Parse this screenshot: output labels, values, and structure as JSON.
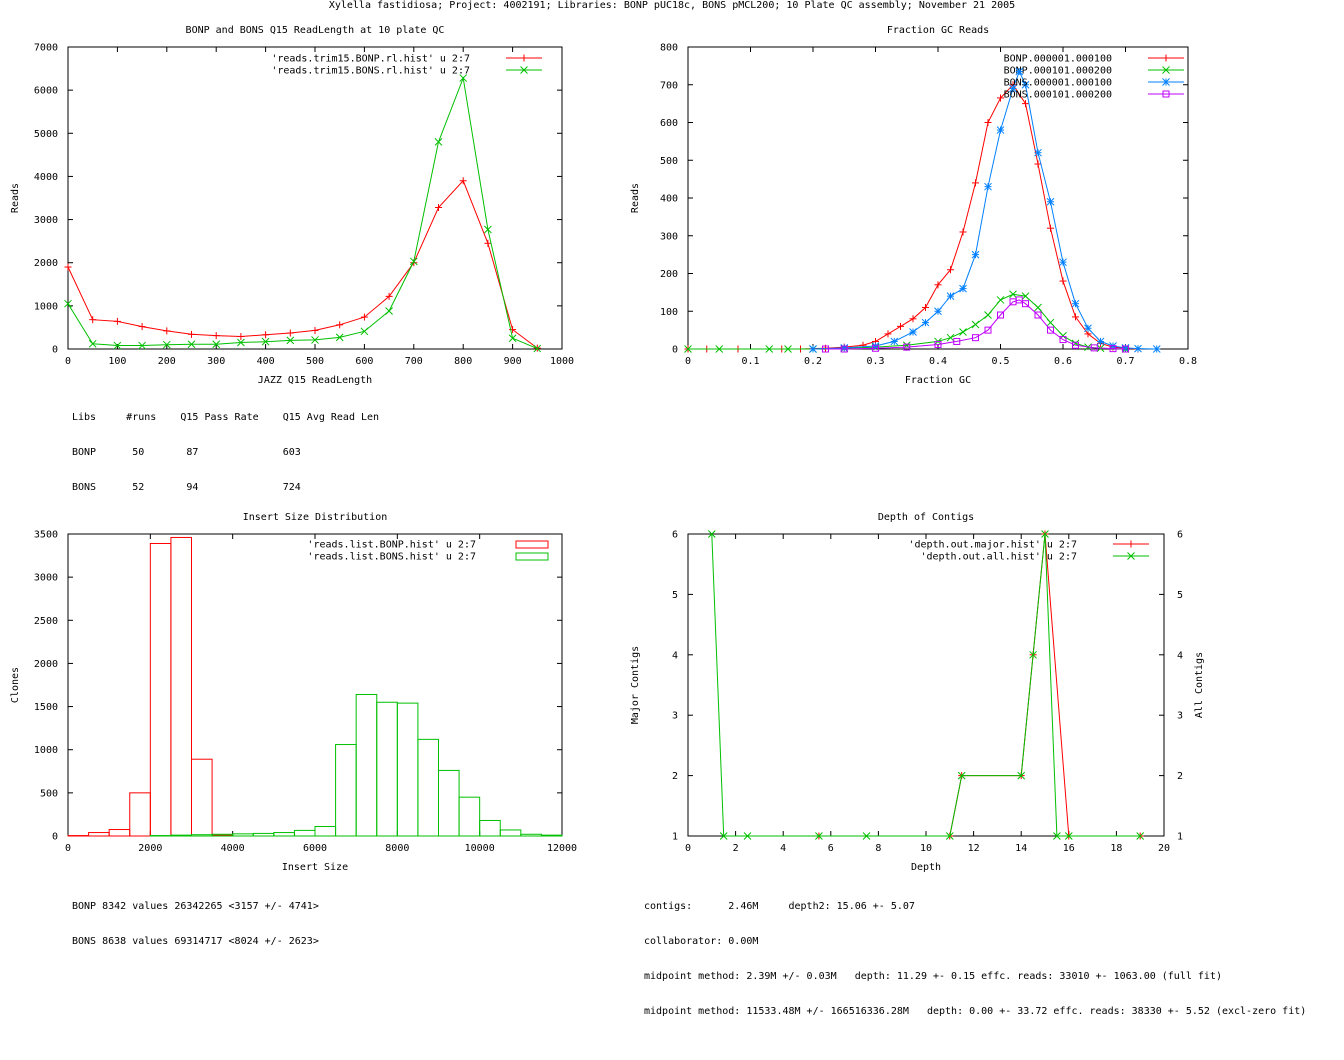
{
  "page_title": "Xylella fastidiosa; Project: 4002191; Libraries: BONP pUC18c, BONS pMCL200; 10 Plate QC assembly; November 21 2005",
  "colors": {
    "red": "#ff0000",
    "green": "#00c000",
    "blue": "#0080ff",
    "magenta": "#c000ff"
  },
  "chart_data": [
    {
      "type": "line",
      "title": "BONP and BONS Q15 ReadLength at 10 plate QC",
      "xlabel": "JAZZ Q15 ReadLength",
      "ylabel": "Reads",
      "xlim": [
        0,
        1000
      ],
      "ylim": [
        0,
        7000
      ],
      "xticks": [
        0,
        100,
        200,
        300,
        400,
        500,
        600,
        700,
        800,
        900,
        1000
      ],
      "yticks": [
        0,
        1000,
        2000,
        3000,
        4000,
        5000,
        6000,
        7000
      ],
      "series": [
        {
          "name": "'reads.trim15.BONP.rl.hist' u 2:7",
          "color": "#ff0000",
          "marker": "plus",
          "x": [
            0,
            50,
            100,
            150,
            200,
            250,
            300,
            350,
            400,
            450,
            500,
            550,
            600,
            650,
            700,
            750,
            800,
            850,
            900,
            950
          ],
          "y": [
            1900,
            680,
            640,
            520,
            420,
            340,
            310,
            290,
            330,
            370,
            430,
            560,
            740,
            1220,
            2000,
            3280,
            3900,
            2450,
            450,
            20
          ]
        },
        {
          "name": "'reads.trim15.BONS.rl.hist' u 2:7",
          "color": "#00c000",
          "marker": "x",
          "x": [
            0,
            50,
            100,
            150,
            200,
            250,
            300,
            350,
            400,
            450,
            500,
            550,
            600,
            650,
            700,
            750,
            800,
            850,
            900,
            950
          ],
          "y": [
            1050,
            120,
            80,
            80,
            100,
            110,
            110,
            150,
            170,
            200,
            210,
            270,
            410,
            880,
            2030,
            4800,
            6280,
            2770,
            250,
            10
          ]
        }
      ],
      "stats_text": [
        "Libs     #runs    Q15 Pass Rate    Q15 Avg Read Len",
        "BONP      50       87              603",
        "BONS      52       94              724"
      ]
    },
    {
      "type": "line",
      "title": "Fraction GC Reads",
      "xlabel": "Fraction GC",
      "ylabel": "Reads",
      "xlim": [
        0,
        0.8
      ],
      "ylim": [
        0,
        800
      ],
      "xticks": [
        0,
        0.1,
        0.2,
        0.3,
        0.4,
        0.5,
        0.6,
        0.7,
        0.8
      ],
      "yticks": [
        0,
        100,
        200,
        300,
        400,
        500,
        600,
        700,
        800
      ],
      "series": [
        {
          "name": "BONP.000001.000100",
          "color": "#ff0000",
          "marker": "plus",
          "x": [
            0,
            0.03,
            0.08,
            0.15,
            0.18,
            0.22,
            0.25,
            0.28,
            0.3,
            0.32,
            0.34,
            0.36,
            0.38,
            0.4,
            0.42,
            0.44,
            0.46,
            0.48,
            0.5,
            0.52,
            0.54,
            0.56,
            0.58,
            0.6,
            0.62,
            0.64,
            0.66,
            0.68,
            0.7,
            0.72
          ],
          "y": [
            0,
            0,
            0,
            0,
            0,
            2,
            5,
            10,
            20,
            40,
            60,
            80,
            110,
            170,
            210,
            310,
            440,
            600,
            665,
            700,
            650,
            490,
            320,
            180,
            85,
            40,
            15,
            5,
            2,
            0
          ]
        },
        {
          "name": "BONP.000101.000200",
          "color": "#00c000",
          "marker": "x",
          "x": [
            0,
            0.05,
            0.13,
            0.16,
            0.2,
            0.25,
            0.3,
            0.35,
            0.4,
            0.42,
            0.44,
            0.46,
            0.48,
            0.5,
            0.52,
            0.54,
            0.56,
            0.58,
            0.6,
            0.62,
            0.64,
            0.66,
            0.7
          ],
          "y": [
            0,
            0,
            0,
            0,
            0,
            2,
            5,
            10,
            20,
            30,
            45,
            65,
            90,
            130,
            145,
            140,
            110,
            70,
            35,
            15,
            5,
            2,
            0
          ]
        },
        {
          "name": "BONS.000001.000100",
          "color": "#0080ff",
          "marker": "star",
          "x": [
            0.2,
            0.25,
            0.3,
            0.33,
            0.36,
            0.38,
            0.4,
            0.42,
            0.44,
            0.46,
            0.48,
            0.5,
            0.52,
            0.53,
            0.54,
            0.56,
            0.58,
            0.6,
            0.62,
            0.64,
            0.66,
            0.68,
            0.7,
            0.72,
            0.75
          ],
          "y": [
            0,
            3,
            8,
            20,
            45,
            70,
            100,
            140,
            160,
            250,
            430,
            580,
            690,
            735,
            700,
            520,
            390,
            230,
            120,
            55,
            20,
            8,
            3,
            1,
            0
          ]
        },
        {
          "name": "BONS.000101.000200",
          "color": "#c000ff",
          "marker": "square",
          "x": [
            0.22,
            0.25,
            0.3,
            0.35,
            0.4,
            0.43,
            0.46,
            0.48,
            0.5,
            0.52,
            0.53,
            0.54,
            0.56,
            0.58,
            0.6,
            0.62,
            0.65,
            0.68,
            0.7
          ],
          "y": [
            0,
            0,
            2,
            5,
            12,
            20,
            30,
            50,
            90,
            125,
            130,
            120,
            90,
            50,
            25,
            10,
            3,
            1,
            0
          ]
        }
      ]
    },
    {
      "type": "bar",
      "title": "Insert Size Distribution",
      "xlabel": "Insert Size",
      "ylabel": "Clones",
      "xlim": [
        0,
        12000
      ],
      "ylim": [
        0,
        3500
      ],
      "xticks": [
        0,
        2000,
        4000,
        6000,
        8000,
        10000,
        12000
      ],
      "yticks": [
        0,
        500,
        1000,
        1500,
        2000,
        2500,
        3000,
        3500
      ],
      "bin_width": 500,
      "series": [
        {
          "name": "'reads.list.BONP.hist' u 2:7",
          "color": "#ff0000",
          "bin_starts": [
            0,
            500,
            1000,
            1500,
            2000,
            2500,
            3000,
            3500
          ],
          "values": [
            5,
            40,
            75,
            500,
            3390,
            3460,
            890,
            10
          ]
        },
        {
          "name": "'reads.list.BONS.hist' u 2:7",
          "color": "#00c000",
          "bin_starts": [
            2000,
            2500,
            3000,
            3500,
            4000,
            4500,
            5000,
            5500,
            6000,
            6500,
            7000,
            7500,
            8000,
            8500,
            9000,
            9500,
            10000,
            10500,
            11000,
            11500
          ],
          "values": [
            5,
            10,
            15,
            20,
            25,
            30,
            40,
            65,
            110,
            1060,
            1640,
            1550,
            1540,
            1120,
            760,
            450,
            180,
            70,
            20,
            10
          ]
        }
      ],
      "stats_text": [
        "BONP 8342 values 26342265 <3157 +/- 4741>",
        "BONS 8638 values 69314717 <8024 +/- 2623>"
      ]
    },
    {
      "type": "line",
      "title": "Depth of Contigs",
      "xlabel": "Depth",
      "ylabel": "Major Contigs",
      "y2label": "All Contigs",
      "xlim": [
        0,
        20
      ],
      "ylim": [
        1,
        6
      ],
      "xticks": [
        0,
        2,
        4,
        6,
        8,
        10,
        12,
        14,
        16,
        18,
        20
      ],
      "yticks": [
        1,
        2,
        3,
        4,
        5,
        6
      ],
      "series": [
        {
          "name": "'depth.out.major.hist' u 2:7",
          "color": "#ff0000",
          "marker": "plus",
          "x": [
            5.5,
            11,
            11.5,
            14,
            14.5,
            15,
            16,
            19
          ],
          "y": [
            1,
            1,
            2,
            2,
            4,
            6,
            1,
            1
          ]
        },
        {
          "name": "'depth.out.all.hist' u 2:7",
          "color": "#00c000",
          "marker": "x",
          "x": [
            1,
            1.5,
            2.5,
            5.5,
            7.5,
            11,
            11.5,
            14,
            14.5,
            15,
            15.5,
            16,
            19
          ],
          "y": [
            6,
            1,
            1,
            1,
            1,
            1,
            2,
            2,
            4,
            6,
            1,
            1,
            1
          ]
        }
      ],
      "stats_text": [
        "contigs:      2.46M     depth2: 15.06 +- 5.07",
        "collaborator: 0.00M",
        "midpoint method: 2.39M +/- 0.03M   depth: 11.29 +- 0.15 effc. reads: 33010 +- 1063.00 (full fit)",
        "midpoint method: 11533.48M +/- 166516336.28M   depth: 0.00 +- 33.72 effc. reads: 38330 +- 5.52 (excl-zero fit)"
      ]
    }
  ]
}
